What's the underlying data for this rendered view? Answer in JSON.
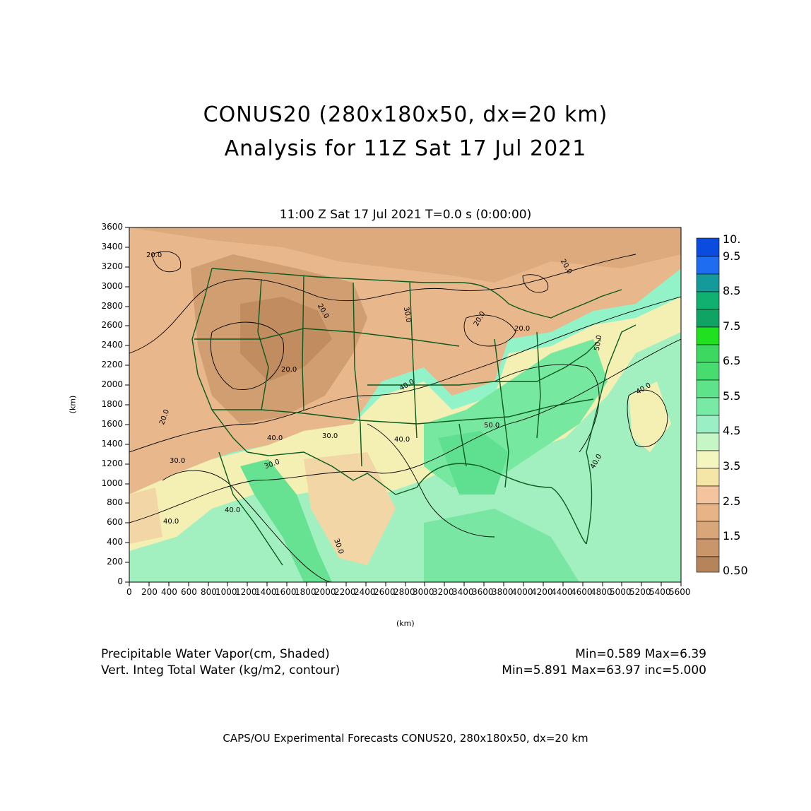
{
  "title_line1": "CONUS20 (280x180x50, dx=20 km)",
  "title_line2": "Analysis for 11Z Sat 17 Jul 2021",
  "subtitle": "11:00 Z Sat 17 Jul 2021    T=0.0 s (0:00:00)",
  "axes": {
    "x_unit": "(km)",
    "y_unit": "(km)",
    "x_ticks": [
      "0",
      "200",
      "400",
      "600",
      "800",
      "1000",
      "1200",
      "1400",
      "1600",
      "1800",
      "2000",
      "2200",
      "2400",
      "2600",
      "2800",
      "3000",
      "3200",
      "3400",
      "3600",
      "3800",
      "4000",
      "4200",
      "4400",
      "4600",
      "4800",
      "5000",
      "5200",
      "5400",
      "5600"
    ],
    "y_ticks": [
      "0",
      "200",
      "400",
      "600",
      "800",
      "1000",
      "1200",
      "1400",
      "1600",
      "1800",
      "2000",
      "2200",
      "2400",
      "2600",
      "2800",
      "3000",
      "3200",
      "3400",
      "3600"
    ],
    "x_range": [
      0,
      5600
    ],
    "y_range": [
      0,
      3600
    ]
  },
  "contour_labels": [
    "20.0",
    "20.0",
    "20.0",
    "20.0",
    "20.0",
    "20.0",
    "30.0",
    "30.0",
    "30.0",
    "30.0",
    "40.0",
    "40.0",
    "40.0",
    "40.0",
    "40.0",
    "40.0",
    "50.0",
    "50.0",
    "20.0",
    "30.0",
    "40.0"
  ],
  "colorbar": {
    "labels": [
      "10.",
      "9.5",
      "8.5",
      "7.5",
      "6.5",
      "5.5",
      "4.5",
      "3.5",
      "2.5",
      "1.5",
      "0.50"
    ],
    "colors": [
      "#0a4ce0",
      "#1e6cf0",
      "#149a9a",
      "#10a464",
      "#20e020",
      "#3ccd5a",
      "#58dd78",
      "#6cedaa",
      "#92f2c8",
      "#c2f6c2",
      "#f4f6c0",
      "#f4e8a8",
      "#f4c49e",
      "#e6b486",
      "#d6a476",
      "#c69466",
      "#b6845a"
    ]
  },
  "stats": {
    "shaded_label": "Precipitable Water Vapor(cm, Shaded)",
    "shaded_range": "Min=0.589  Max=6.39",
    "contour_label": "Vert. Integ Total Water (kg/m2, contour)",
    "contour_range": "Min=5.891  Max=63.97  inc=5.000"
  },
  "footer": "CAPS/OU Experimental Forecasts   CONUS20, 280x180x50, dx=20 km"
}
